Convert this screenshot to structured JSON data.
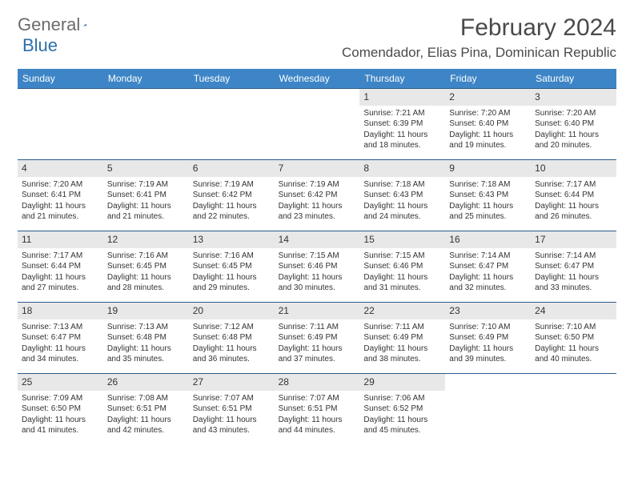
{
  "logo": {
    "text1": "General",
    "text2": "Blue"
  },
  "title": "February 2024",
  "location": "Comendador, Elias Pina, Dominican Republic",
  "colors": {
    "header_bg": "#3d85c6",
    "header_text": "#ffffff",
    "daynum_bg": "#e8e8e8",
    "row_border": "#2b5a8a",
    "logo_gray": "#6b6b6b",
    "logo_blue": "#2b6fab"
  },
  "weekdays": [
    "Sunday",
    "Monday",
    "Tuesday",
    "Wednesday",
    "Thursday",
    "Friday",
    "Saturday"
  ],
  "weeks": [
    [
      null,
      null,
      null,
      null,
      {
        "n": "1",
        "sr": "7:21 AM",
        "ss": "6:39 PM",
        "dl": "11 hours and 18 minutes."
      },
      {
        "n": "2",
        "sr": "7:20 AM",
        "ss": "6:40 PM",
        "dl": "11 hours and 19 minutes."
      },
      {
        "n": "3",
        "sr": "7:20 AM",
        "ss": "6:40 PM",
        "dl": "11 hours and 20 minutes."
      }
    ],
    [
      {
        "n": "4",
        "sr": "7:20 AM",
        "ss": "6:41 PM",
        "dl": "11 hours and 21 minutes."
      },
      {
        "n": "5",
        "sr": "7:19 AM",
        "ss": "6:41 PM",
        "dl": "11 hours and 21 minutes."
      },
      {
        "n": "6",
        "sr": "7:19 AM",
        "ss": "6:42 PM",
        "dl": "11 hours and 22 minutes."
      },
      {
        "n": "7",
        "sr": "7:19 AM",
        "ss": "6:42 PM",
        "dl": "11 hours and 23 minutes."
      },
      {
        "n": "8",
        "sr": "7:18 AM",
        "ss": "6:43 PM",
        "dl": "11 hours and 24 minutes."
      },
      {
        "n": "9",
        "sr": "7:18 AM",
        "ss": "6:43 PM",
        "dl": "11 hours and 25 minutes."
      },
      {
        "n": "10",
        "sr": "7:17 AM",
        "ss": "6:44 PM",
        "dl": "11 hours and 26 minutes."
      }
    ],
    [
      {
        "n": "11",
        "sr": "7:17 AM",
        "ss": "6:44 PM",
        "dl": "11 hours and 27 minutes."
      },
      {
        "n": "12",
        "sr": "7:16 AM",
        "ss": "6:45 PM",
        "dl": "11 hours and 28 minutes."
      },
      {
        "n": "13",
        "sr": "7:16 AM",
        "ss": "6:45 PM",
        "dl": "11 hours and 29 minutes."
      },
      {
        "n": "14",
        "sr": "7:15 AM",
        "ss": "6:46 PM",
        "dl": "11 hours and 30 minutes."
      },
      {
        "n": "15",
        "sr": "7:15 AM",
        "ss": "6:46 PM",
        "dl": "11 hours and 31 minutes."
      },
      {
        "n": "16",
        "sr": "7:14 AM",
        "ss": "6:47 PM",
        "dl": "11 hours and 32 minutes."
      },
      {
        "n": "17",
        "sr": "7:14 AM",
        "ss": "6:47 PM",
        "dl": "11 hours and 33 minutes."
      }
    ],
    [
      {
        "n": "18",
        "sr": "7:13 AM",
        "ss": "6:47 PM",
        "dl": "11 hours and 34 minutes."
      },
      {
        "n": "19",
        "sr": "7:13 AM",
        "ss": "6:48 PM",
        "dl": "11 hours and 35 minutes."
      },
      {
        "n": "20",
        "sr": "7:12 AM",
        "ss": "6:48 PM",
        "dl": "11 hours and 36 minutes."
      },
      {
        "n": "21",
        "sr": "7:11 AM",
        "ss": "6:49 PM",
        "dl": "11 hours and 37 minutes."
      },
      {
        "n": "22",
        "sr": "7:11 AM",
        "ss": "6:49 PM",
        "dl": "11 hours and 38 minutes."
      },
      {
        "n": "23",
        "sr": "7:10 AM",
        "ss": "6:49 PM",
        "dl": "11 hours and 39 minutes."
      },
      {
        "n": "24",
        "sr": "7:10 AM",
        "ss": "6:50 PM",
        "dl": "11 hours and 40 minutes."
      }
    ],
    [
      {
        "n": "25",
        "sr": "7:09 AM",
        "ss": "6:50 PM",
        "dl": "11 hours and 41 minutes."
      },
      {
        "n": "26",
        "sr": "7:08 AM",
        "ss": "6:51 PM",
        "dl": "11 hours and 42 minutes."
      },
      {
        "n": "27",
        "sr": "7:07 AM",
        "ss": "6:51 PM",
        "dl": "11 hours and 43 minutes."
      },
      {
        "n": "28",
        "sr": "7:07 AM",
        "ss": "6:51 PM",
        "dl": "11 hours and 44 minutes."
      },
      {
        "n": "29",
        "sr": "7:06 AM",
        "ss": "6:52 PM",
        "dl": "11 hours and 45 minutes."
      },
      null,
      null
    ]
  ],
  "labels": {
    "sunrise": "Sunrise: ",
    "sunset": "Sunset: ",
    "daylight": "Daylight: "
  }
}
